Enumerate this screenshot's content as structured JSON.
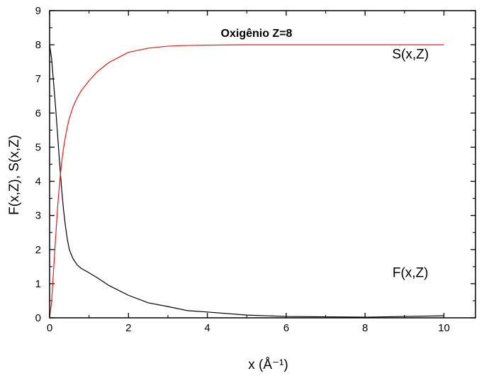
{
  "chart_data": {
    "type": "line",
    "title": "Oxigênio Z=8",
    "xlabel": "x (Å⁻¹)",
    "ylabel": "F(x,Z), S(x,Z)",
    "xlim": [
      0,
      10.8
    ],
    "ylim": [
      0,
      9
    ],
    "x_ticks": [
      0,
      2,
      4,
      6,
      8,
      10
    ],
    "y_ticks": [
      0,
      1,
      2,
      3,
      4,
      5,
      6,
      7,
      8,
      9
    ],
    "grid": false,
    "series": [
      {
        "name": "F(x,Z)",
        "color": "#000000",
        "x": [
          0,
          0.05,
          0.1,
          0.15,
          0.2,
          0.25,
          0.3,
          0.35,
          0.4,
          0.45,
          0.5,
          0.55,
          0.6,
          0.7,
          0.8,
          1.0,
          1.2,
          1.5,
          2.0,
          2.5,
          3.0,
          3.5,
          4.0,
          5.0,
          6.0,
          7.0,
          8.0,
          9.0,
          10.0
        ],
        "y": [
          8.0,
          7.6,
          6.9,
          6.2,
          5.4,
          4.6,
          3.85,
          3.2,
          2.7,
          2.3,
          2.0,
          1.85,
          1.72,
          1.55,
          1.45,
          1.32,
          1.18,
          0.95,
          0.66,
          0.44,
          0.33,
          0.21,
          0.17,
          0.08,
          0.04,
          0.03,
          0.02,
          0.04,
          0.06
        ]
      },
      {
        "name": "S(x,Z)",
        "color": "#e41a1c",
        "x": [
          0,
          0.05,
          0.1,
          0.15,
          0.2,
          0.25,
          0.3,
          0.35,
          0.4,
          0.45,
          0.5,
          0.6,
          0.7,
          0.8,
          1.0,
          1.2,
          1.5,
          2.0,
          2.5,
          3.0,
          3.5,
          4.0,
          5.0,
          6.0,
          7.0,
          8.0,
          9.0,
          10.0
        ],
        "y": [
          0.0,
          0.45,
          1.4,
          2.3,
          3.2,
          3.9,
          4.5,
          4.95,
          5.3,
          5.6,
          5.85,
          6.2,
          6.45,
          6.65,
          6.95,
          7.2,
          7.48,
          7.78,
          7.9,
          7.96,
          7.98,
          7.99,
          8.0,
          8.0,
          8.0,
          8.0,
          8.0,
          8.0
        ]
      }
    ],
    "annotations": [
      {
        "text": "S(x,Z)",
        "x": 9.15,
        "y": 7.6
      },
      {
        "text": "F(x,Z)",
        "x": 9.15,
        "y": 1.2
      }
    ]
  }
}
